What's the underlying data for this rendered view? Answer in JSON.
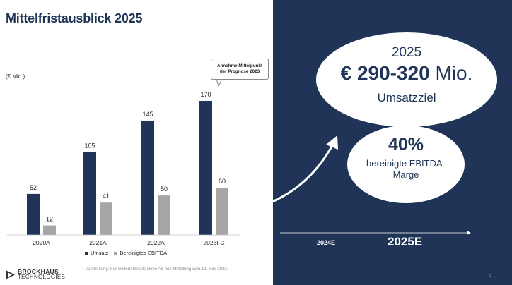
{
  "title": "Mittelfristausblick 2025",
  "unit_label": "(€ Mio.)",
  "callout": {
    "line1": "Annahme Mittelpunkt",
    "line2": "der Prognose 2023"
  },
  "chart_data": {
    "type": "bar",
    "categories": [
      "2020A",
      "2021A",
      "2022A",
      "2023FC"
    ],
    "series": [
      {
        "name": "Umsatz",
        "values": [
          52,
          105,
          145,
          170
        ],
        "color": "#1f3456"
      },
      {
        "name": "Bereinigtes EBITDA",
        "values": [
          12,
          41,
          50,
          60
        ],
        "color": "#a6a6a6"
      }
    ],
    "ylabel": "(€ Mio.)",
    "legend_position": "bottom",
    "grid": false
  },
  "footnote": "Anmerkung: Für weitere Details siehe Ad-hoc-Mitteilung vom 19. Juni 2023.",
  "logo": {
    "line1": "BROCKHAUS",
    "line2": "TECHNOLOGIES"
  },
  "outlook": {
    "year": "2025",
    "range_bold": "€ 290-320",
    "range_unit": " Mio.",
    "revenue_label": "Umsatzziel",
    "margin_pct": "40%",
    "margin_label_line1": "bereinigte EBITDA-",
    "margin_label_line2": "Marge"
  },
  "timeline": {
    "first": "2024E",
    "second": "2025E"
  },
  "page_number": "2",
  "colors": {
    "navy": "#1f3456",
    "grey": "#a6a6a6",
    "white": "#ffffff"
  }
}
